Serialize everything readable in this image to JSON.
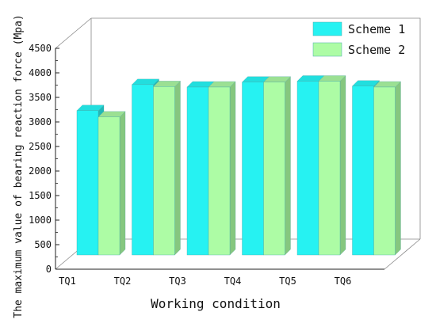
{
  "chart_data": {
    "type": "bar",
    "style": "3d-clustered",
    "title": "",
    "xlabel": "Working condition",
    "ylabel": "The maximum value of bearing reaction force (Mpa)",
    "categories": [
      "TQ1",
      "TQ2",
      "TQ3",
      "TQ4",
      "TQ5",
      "TQ6"
    ],
    "series": [
      {
        "name": "Scheme 1",
        "values": [
          2940,
          3470,
          3420,
          3520,
          3540,
          3440
        ]
      },
      {
        "name": "Scheme 2",
        "values": [
          2810,
          3430,
          3420,
          3520,
          3540,
          3420
        ]
      }
    ],
    "ylim": [
      0,
      4500
    ],
    "yticks": [
      0,
      500,
      1000,
      1500,
      2000,
      2500,
      3000,
      3500,
      4000,
      4500
    ],
    "colors": {
      "Scheme 1": {
        "front": "#26f2f2",
        "top": "#22dede",
        "side": "#1fb8b8"
      },
      "Scheme 2": {
        "front": "#adfca5",
        "top": "#9be093",
        "side": "#86c77f"
      }
    },
    "legend": "top-right",
    "grid": false
  }
}
